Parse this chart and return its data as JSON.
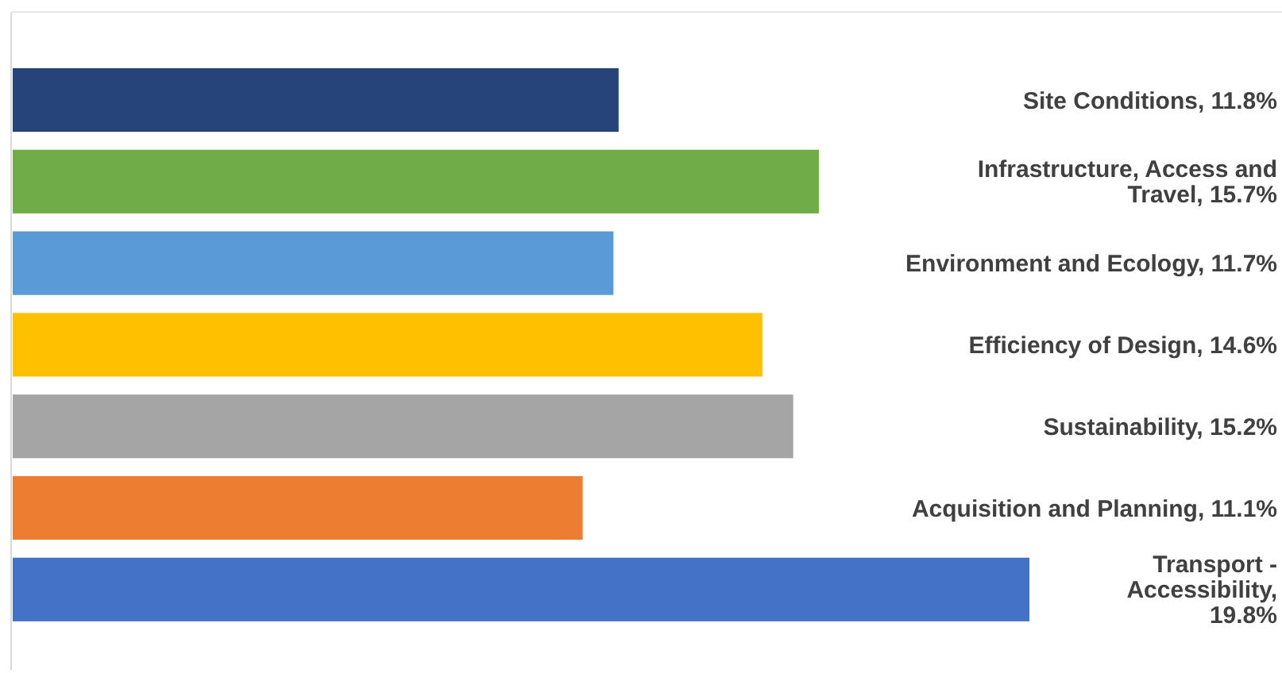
{
  "chart_data": {
    "type": "bar",
    "orientation": "horizontal",
    "categories": [
      null,
      null,
      null,
      null,
      null,
      null,
      null
    ],
    "values": [
      11.8,
      15.7,
      11.7,
      14.6,
      15.2,
      11.1,
      19.8
    ],
    "value_labels": [
      "Site Conditions, 11.8%",
      "Infrastructure, Access and Travel, 15.7%",
      "Environment and Ecology, 11.7%",
      "Efficiency of Design, 14.6%",
      "Sustainability, 15.2%",
      "Acquisition and Planning, 11.1%",
      "Transport - Accessibility, 19.8%"
    ],
    "colors": [
      "#264478",
      "#70ad47",
      "#5b9bd5",
      "#ffc000",
      "#a5a5a5",
      "#ed7d31",
      "#4472c4"
    ]
  }
}
